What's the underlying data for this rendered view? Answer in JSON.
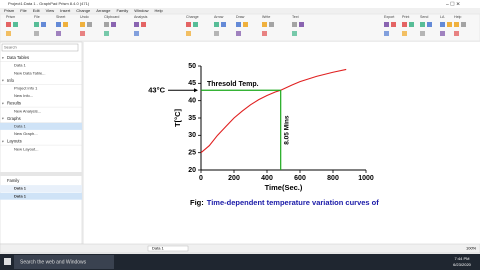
{
  "window": {
    "title": "Project1:Data 1 - GraphPad Prism 8.4.0 (471)"
  },
  "menu": [
    "Prism",
    "File",
    "Edit",
    "View",
    "Insert",
    "Change",
    "Arrange",
    "Family",
    "Window",
    "Help"
  ],
  "toolbar_groups": [
    "Prism",
    "File",
    "Sheet",
    "Undo",
    "Clipboard",
    "Analysis",
    "Change",
    "Arrow",
    "Draw",
    "Write",
    "Text",
    "Export",
    "Print",
    "Send",
    "LA",
    "Help"
  ],
  "search_placeholder": "Search",
  "navigator": [
    {
      "header": "Data Tables",
      "items": [
        "Data 1",
        "New Data Table..."
      ]
    },
    {
      "header": "Info",
      "items": [
        "Project info 1",
        "New Info..."
      ]
    },
    {
      "header": "Results",
      "items": [
        "New Analysis..."
      ]
    },
    {
      "header": "Graphs",
      "items": [
        "Data 1",
        "New Graph..."
      ]
    },
    {
      "header": "Layouts",
      "items": [
        "New Layout..."
      ]
    }
  ],
  "family": {
    "header": "Family",
    "items": [
      "Data 1",
      "Data 1"
    ]
  },
  "chart_data": {
    "type": "line",
    "x": [
      0,
      50,
      100,
      150,
      200,
      250,
      300,
      350,
      400,
      450,
      483,
      550,
      600,
      700,
      800,
      880
    ],
    "values": [
      25,
      27,
      30,
      32.5,
      35,
      37,
      38.8,
      40.3,
      41.5,
      42.5,
      43,
      44.5,
      45.5,
      47,
      48.2,
      49
    ],
    "color": "#e02020",
    "xlim": [
      0,
      1000
    ],
    "xticks": [
      0,
      200,
      400,
      600,
      800,
      1000
    ],
    "ylim": [
      20,
      50
    ],
    "yticks": [
      20,
      25,
      30,
      35,
      40,
      45,
      50
    ],
    "xlabel": "Time(Sec.)",
    "ylabel": "T[°C]",
    "threshold": {
      "y": 43,
      "x": 483,
      "color": "#1aa81a",
      "y_label": "43°C",
      "label": "Thresold Temp.",
      "x_label": "8.05 Mins"
    }
  },
  "caption": {
    "prefix": "Fig:",
    "text": "Time-dependent temperature variation curves of"
  },
  "status": {
    "sheet": "Data 1",
    "zoom": "100%"
  },
  "taskbar": {
    "search": "Search the web and Windows",
    "time": "7:44 PM",
    "date": "6/23/2020"
  }
}
